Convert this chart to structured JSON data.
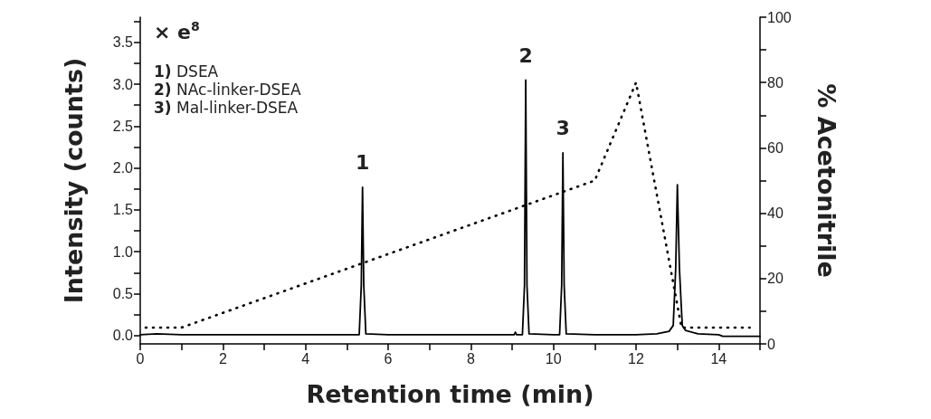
{
  "chart_data": {
    "type": "line",
    "xlabel": "Retention time (min)",
    "ylabel": "Intensity (counts)",
    "y2label": "% Acetonitrile",
    "xlim": [
      0,
      15
    ],
    "xticks": [
      0,
      {
        "value": 1,
        "label": null
      },
      2,
      {
        "value": 3,
        "label": null
      },
      4,
      {
        "value": 5,
        "label": null
      },
      6,
      {
        "value": 7,
        "label": null
      },
      8,
      {
        "value": 9,
        "label": null
      },
      10,
      {
        "value": 11,
        "label": null
      },
      12,
      {
        "value": 13,
        "label": null
      },
      14,
      {
        "value": 15,
        "label": null
      }
    ],
    "ylim": [
      -0.1,
      3.8
    ],
    "yticks": [
      {
        "value": 0,
        "label": "0.0"
      },
      {
        "value": 0.25,
        "label": null
      },
      0.5,
      {
        "value": 0.75,
        "label": null
      },
      {
        "value": 1,
        "label": "1.0"
      },
      {
        "value": 1.25,
        "label": null
      },
      1.5,
      {
        "value": 1.75,
        "label": null
      },
      {
        "value": 2,
        "label": "2.0"
      },
      {
        "value": 2.25,
        "label": null
      },
      2.5,
      {
        "value": 2.75,
        "label": null
      },
      {
        "value": 3,
        "label": "3.0"
      },
      {
        "value": 3.25,
        "label": null
      },
      3.5,
      {
        "value": 3.75,
        "label": null
      }
    ],
    "y2lim": [
      0,
      100
    ],
    "y2ticks": [
      0,
      {
        "value": 10,
        "label": null
      },
      20,
      {
        "value": 30,
        "label": null
      },
      40,
      {
        "value": 50,
        "label": null
      },
      60,
      {
        "value": 70,
        "label": null
      },
      80,
      {
        "value": 90,
        "label": null
      },
      100
    ],
    "grid": false,
    "marker": "none",
    "series": [
      {
        "color": "#000000",
        "line_style": "solid",
        "x": [
          0,
          0.4,
          1,
          2,
          3,
          4,
          5,
          5.3,
          5.35,
          5.38,
          5.41,
          5.46,
          6,
          7,
          8,
          9,
          9.05,
          9.08,
          9.11,
          9.25,
          9.3,
          9.33,
          9.36,
          9.41,
          10,
          10.15,
          10.2,
          10.23,
          10.26,
          10.31,
          11,
          12,
          12.5,
          12.8,
          12.9,
          12.96,
          13,
          13.05,
          13.1,
          13.12,
          13.2,
          13.5,
          14,
          14.1,
          15
        ],
        "values": [
          0.01,
          0.02,
          0.01,
          0.01,
          0.01,
          0.01,
          0.01,
          0.01,
          0.6,
          1.77,
          0.6,
          0.02,
          0.01,
          0.01,
          0.01,
          0.01,
          0.01,
          0.04,
          0.01,
          0.01,
          0.6,
          3.05,
          0.6,
          0.02,
          0.01,
          0.01,
          0.6,
          2.18,
          0.6,
          0.02,
          0.01,
          0.01,
          0.02,
          0.05,
          0.12,
          0.8,
          1.8,
          0.8,
          0.3,
          0.12,
          0.06,
          0.02,
          0.01,
          -0.01,
          -0.01
        ]
      },
      {
        "color": "#000000",
        "line_style": "dotted",
        "axis": "y2",
        "x": [
          0,
          1,
          11,
          12,
          13.1,
          14.75
        ],
        "values": [
          5,
          5,
          50,
          80,
          5,
          5
        ]
      }
    ],
    "annotations": [
      "× e$^{8}$",
      "1) DSEA",
      "2) NAc-linker-DSEA",
      "3) Mal-linker-DSEA",
      {
        "text": "1",
        "x": 5.38,
        "y": 1.77
      },
      {
        "text": "2",
        "x": 9.33,
        "y": 3.05
      },
      {
        "text": "3",
        "x": 10.23,
        "y": 2.18
      }
    ]
  }
}
